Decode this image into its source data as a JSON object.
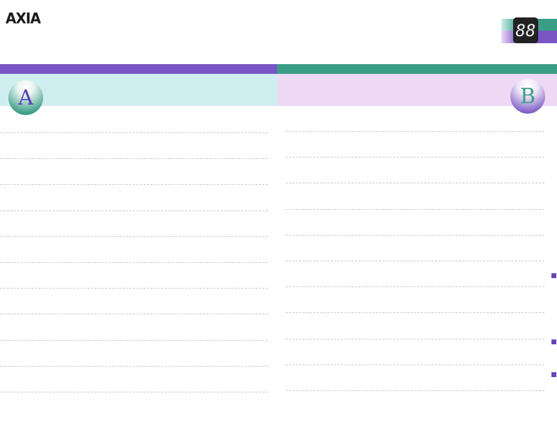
{
  "brand": {
    "logo": "AXIA"
  },
  "counter": {
    "display": "88"
  },
  "sides": {
    "a": "A",
    "b": "B"
  },
  "colors": {
    "purple": "#7a56c4",
    "teal": "#3a9e87",
    "cyan_band": "#cfeef0",
    "lavender_band": "#eed9f5"
  },
  "lines": {
    "per_side": 11
  }
}
